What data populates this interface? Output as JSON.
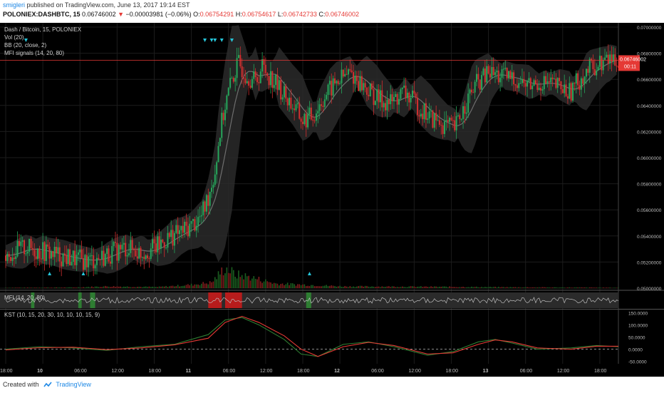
{
  "header": {
    "publisher": "smigleri",
    "published_text": "published on TradingView.com, June 13, 2017 19:14 EST",
    "symbol": "POLONIEX:DASHBTC, 15",
    "last": "0.06746002",
    "change": "−0.00003981 (−0.06%)",
    "o_label": "O:",
    "o_value": "0.06754291",
    "h_label": "H:",
    "h_value": "0.06754617",
    "l_label": "L:",
    "l_value": "0.06742733",
    "c_label": "C:",
    "c_value": "0.06746002"
  },
  "legend": {
    "pair": "Dash / Bitcoin, 15, POLONIEX",
    "vol": "Vol (20)",
    "bb": "BB (20, close, 2)",
    "mfi_signals": "MFI signals (14, 20, 80)"
  },
  "mfi_pane": {
    "label": "MFI (14, 20, 80)"
  },
  "kst_pane": {
    "label": "KST (10, 15, 20, 30, 10, 10, 10, 15, 9)"
  },
  "footer": {
    "created_with": "Created with",
    "brand": "TradingView"
  },
  "colors": {
    "background": "#000000",
    "up_candle": "#26a65b",
    "down_candle": "#d32f2f",
    "price_line": "#e53935",
    "kst_line": "#2e7d32",
    "kst_signal": "#e53935",
    "arrow": "#26c6da"
  },
  "chart_data": {
    "type": "candlestick",
    "price_axis": {
      "ticks": [
        "0.07000000",
        "0.06800000",
        "0.06600000",
        "0.06400000",
        "0.06200000",
        "0.06000000",
        "0.05800000",
        "0.05600000",
        "0.05400000",
        "0.05200000",
        "0.05000000"
      ],
      "range": [
        0.05,
        0.07
      ]
    },
    "current_price": {
      "label": "0.06746002",
      "countdown": "00:11",
      "value": 0.06746
    },
    "price_path": [
      [
        0,
        0.0525
      ],
      [
        6,
        0.0528
      ],
      [
        12,
        0.0531
      ],
      [
        18,
        0.0529
      ],
      [
        26,
        0.0527
      ],
      [
        34,
        0.0524
      ],
      [
        42,
        0.0522
      ],
      [
        50,
        0.0521
      ],
      [
        58,
        0.0524
      ],
      [
        64,
        0.0528
      ],
      [
        72,
        0.0531
      ],
      [
        80,
        0.0527
      ],
      [
        90,
        0.0532
      ],
      [
        98,
        0.054
      ],
      [
        104,
        0.0543
      ],
      [
        110,
        0.0548
      ],
      [
        116,
        0.0555
      ],
      [
        120,
        0.057
      ],
      [
        124,
        0.059
      ],
      [
        127,
        0.062
      ],
      [
        130,
        0.064
      ],
      [
        134,
        0.066
      ],
      [
        138,
        0.0672
      ],
      [
        142,
        0.0665
      ],
      [
        148,
        0.0658
      ],
      [
        152,
        0.067
      ],
      [
        158,
        0.066
      ],
      [
        164,
        0.065
      ],
      [
        170,
        0.064
      ],
      [
        176,
        0.0628
      ],
      [
        182,
        0.0632
      ],
      [
        188,
        0.0645
      ],
      [
        196,
        0.0658
      ],
      [
        204,
        0.0665
      ],
      [
        212,
        0.0655
      ],
      [
        220,
        0.0645
      ],
      [
        228,
        0.0642
      ],
      [
        236,
        0.065
      ],
      [
        244,
        0.064
      ],
      [
        252,
        0.063
      ],
      [
        260,
        0.0625
      ],
      [
        266,
        0.0622
      ],
      [
        272,
        0.064
      ],
      [
        278,
        0.0655
      ],
      [
        286,
        0.0665
      ],
      [
        294,
        0.0662
      ],
      [
        302,
        0.066
      ],
      [
        310,
        0.0655
      ],
      [
        318,
        0.0658
      ],
      [
        326,
        0.0655
      ],
      [
        334,
        0.065
      ],
      [
        340,
        0.066
      ],
      [
        346,
        0.0668
      ],
      [
        352,
        0.0672
      ],
      [
        358,
        0.0676
      ],
      [
        363,
        0.0675
      ]
    ],
    "volume_path": [
      [
        0,
        0.02
      ],
      [
        40,
        0.03
      ],
      [
        60,
        0.08
      ],
      [
        90,
        0.05
      ],
      [
        110,
        0.15
      ],
      [
        122,
        0.25
      ],
      [
        130,
        0.9
      ],
      [
        136,
        0.6
      ],
      [
        144,
        0.5
      ],
      [
        152,
        0.35
      ],
      [
        160,
        0.2
      ],
      [
        200,
        0.08
      ],
      [
        260,
        0.06
      ],
      [
        300,
        0.04
      ],
      [
        363,
        0.02
      ]
    ],
    "mfi_signal_zones": [
      {
        "from": 15,
        "to": 17,
        "color": "green"
      },
      {
        "from": 43,
        "to": 45,
        "color": "green"
      },
      {
        "from": 50,
        "to": 53,
        "color": "green"
      },
      {
        "from": 120,
        "to": 128,
        "color": "red"
      },
      {
        "from": 130,
        "to": 140,
        "color": "red"
      },
      {
        "from": 178,
        "to": 181,
        "color": "green"
      }
    ],
    "kst": {
      "ticks": [
        "150.0000",
        "100.0000",
        "50.0000",
        "0.0000",
        "-50.0000"
      ],
      "range": [
        -60,
        160
      ],
      "series": [
        {
          "values": [
            [
              0,
              0
            ],
            [
              20,
              10
            ],
            [
              40,
              5
            ],
            [
              60,
              -5
            ],
            [
              80,
              10
            ],
            [
              100,
              20
            ],
            [
              120,
              60
            ],
            [
              130,
              120
            ],
            [
              140,
              130
            ],
            [
              150,
              100
            ],
            [
              165,
              40
            ],
            [
              175,
              -20
            ],
            [
              185,
              -30
            ],
            [
              200,
              20
            ],
            [
              215,
              30
            ],
            [
              230,
              10
            ],
            [
              250,
              -25
            ],
            [
              265,
              -10
            ],
            [
              280,
              30
            ],
            [
              290,
              40
            ],
            [
              300,
              25
            ],
            [
              315,
              0
            ],
            [
              335,
              5
            ],
            [
              350,
              15
            ],
            [
              363,
              10
            ]
          ]
        },
        {
          "values": [
            [
              0,
              -3
            ],
            [
              20,
              6
            ],
            [
              40,
              8
            ],
            [
              60,
              -2
            ],
            [
              80,
              5
            ],
            [
              100,
              18
            ],
            [
              120,
              45
            ],
            [
              130,
              110
            ],
            [
              140,
              135
            ],
            [
              150,
              110
            ],
            [
              165,
              55
            ],
            [
              175,
              0
            ],
            [
              185,
              -30
            ],
            [
              200,
              10
            ],
            [
              215,
              28
            ],
            [
              230,
              15
            ],
            [
              250,
              -20
            ],
            [
              265,
              -15
            ],
            [
              280,
              20
            ],
            [
              290,
              38
            ],
            [
              300,
              30
            ],
            [
              315,
              5
            ],
            [
              335,
              0
            ],
            [
              350,
              12
            ],
            [
              363,
              12
            ]
          ]
        }
      ]
    },
    "time_axis": {
      "labels": [
        {
          "t": 0,
          "text": "18:00"
        },
        {
          "t": 22,
          "text": "10"
        },
        {
          "t": 44,
          "text": "06:00"
        },
        {
          "t": 66,
          "text": "12:00"
        },
        {
          "t": 88,
          "text": "18:00"
        },
        {
          "t": 110,
          "text": "11"
        },
        {
          "t": 132,
          "text": "06:00"
        },
        {
          "t": 154,
          "text": "12:00"
        },
        {
          "t": 176,
          "text": "18:00"
        },
        {
          "t": 198,
          "text": "12"
        },
        {
          "t": 220,
          "text": "06:00"
        },
        {
          "t": 242,
          "text": "12:00"
        },
        {
          "t": 264,
          "text": "18:00"
        },
        {
          "t": 286,
          "text": "13"
        },
        {
          "t": 308,
          "text": "06:00"
        },
        {
          "t": 330,
          "text": "12:00"
        },
        {
          "t": 352,
          "text": "18:00"
        }
      ]
    },
    "signal_arrows": {
      "down": [
        12,
        118,
        122,
        124,
        128,
        134
      ],
      "up": [
        26,
        46,
        180
      ]
    }
  }
}
